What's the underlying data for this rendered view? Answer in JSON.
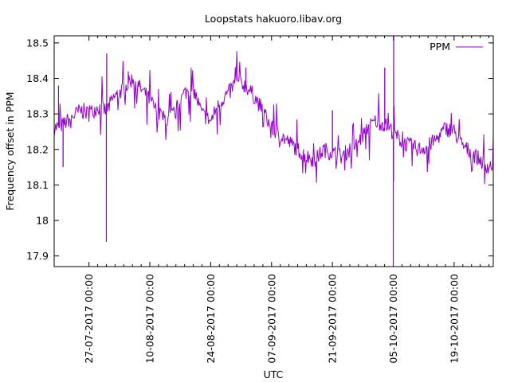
{
  "chart_data": {
    "type": "line",
    "title": "Loopstats hakuoro.libav.org",
    "xlabel": "UTC",
    "ylabel": "Frequency offset in PPM",
    "xlim": [
      "2017-07-19",
      "2017-10-28"
    ],
    "ylim": [
      17.87,
      18.52
    ],
    "x_ticks": [
      "27-07-2017 00:00",
      "10-08-2017 00:00",
      "24-08-2017 00:00",
      "07-09-2017 00:00",
      "21-09-2017 00:00",
      "05-10-2017 00:00",
      "19-10-2017 00:00"
    ],
    "y_ticks": [
      "17.9",
      "18",
      "18.1",
      "18.2",
      "18.3",
      "18.4",
      "18.5"
    ],
    "legend": {
      "position": "top-right"
    },
    "series": [
      {
        "name": "PPM",
        "color": "#9400d3",
        "x": [
          "2017-07-19",
          "2017-07-21",
          "2017-07-23",
          "2017-07-25",
          "2017-07-27",
          "2017-07-29",
          "2017-07-31",
          "2017-08-02",
          "2017-08-04",
          "2017-08-06",
          "2017-08-08",
          "2017-08-10",
          "2017-08-12",
          "2017-08-14",
          "2017-08-16",
          "2017-08-18",
          "2017-08-20",
          "2017-08-22",
          "2017-08-24",
          "2017-08-26",
          "2017-08-28",
          "2017-08-30",
          "2017-09-01",
          "2017-09-03",
          "2017-09-05",
          "2017-09-07",
          "2017-09-09",
          "2017-09-11",
          "2017-09-13",
          "2017-09-15",
          "2017-09-17",
          "2017-09-19",
          "2017-09-21",
          "2017-09-23",
          "2017-09-25",
          "2017-09-27",
          "2017-09-29",
          "2017-10-01",
          "2017-10-03",
          "2017-10-05",
          "2017-10-07",
          "2017-10-09",
          "2017-10-11",
          "2017-10-13",
          "2017-10-15",
          "2017-10-17",
          "2017-10-19",
          "2017-10-21",
          "2017-10-23",
          "2017-10-25",
          "2017-10-27",
          "2017-10-28"
        ],
        "y": [
          18.26,
          18.27,
          18.29,
          18.31,
          18.3,
          18.32,
          18.31,
          18.35,
          18.37,
          18.4,
          18.37,
          18.34,
          18.3,
          18.28,
          18.31,
          18.36,
          18.37,
          18.3,
          18.28,
          18.33,
          18.36,
          18.39,
          18.38,
          18.35,
          18.31,
          18.26,
          18.24,
          18.22,
          18.2,
          18.18,
          18.17,
          18.2,
          18.19,
          18.18,
          18.2,
          18.22,
          18.26,
          18.28,
          18.27,
          18.25,
          18.22,
          18.21,
          18.2,
          18.21,
          18.23,
          18.26,
          18.25,
          18.21,
          18.19,
          18.17,
          18.15,
          18.16
        ],
        "spikes": [
          {
            "x": "2017-07-20",
            "y": 18.38
          },
          {
            "x": "2017-07-21",
            "y": 18.15
          },
          {
            "x": "2017-07-31",
            "y": 18.47
          },
          {
            "x": "2017-07-31",
            "y": 17.94
          },
          {
            "x": "2017-08-05",
            "y": 18.42
          },
          {
            "x": "2017-09-01",
            "y": 18.43
          },
          {
            "x": "2017-09-21",
            "y": 18.31
          },
          {
            "x": "2017-10-03",
            "y": 18.43
          },
          {
            "x": "2017-10-05",
            "y": 18.52
          },
          {
            "x": "2017-10-05",
            "y": 17.87
          },
          {
            "x": "2017-10-05",
            "y": 18.11
          }
        ]
      }
    ]
  }
}
